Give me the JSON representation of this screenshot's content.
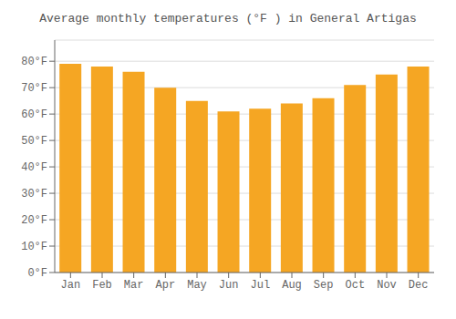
{
  "chart_data": {
    "type": "bar",
    "title": "Average monthly temperatures (°F ) in General Artigas",
    "categories": [
      "Jan",
      "Feb",
      "Mar",
      "Apr",
      "May",
      "Jun",
      "Jul",
      "Aug",
      "Sep",
      "Oct",
      "Nov",
      "Dec"
    ],
    "values": [
      79,
      78,
      76,
      70,
      65,
      61,
      62,
      64,
      66,
      71,
      75,
      78
    ],
    "color": "#F5A623",
    "ylim": [
      0,
      88
    ],
    "yticks": [
      {
        "value": 0,
        "label": "0°F"
      },
      {
        "value": 10,
        "label": "10°F"
      },
      {
        "value": 20,
        "label": "20°F"
      },
      {
        "value": 30,
        "label": "30°F"
      },
      {
        "value": 40,
        "label": "40°F"
      },
      {
        "value": 50,
        "label": "50°F"
      },
      {
        "value": 60,
        "label": "60°F"
      },
      {
        "value": 70,
        "label": "70°F"
      },
      {
        "value": 80,
        "label": "80°F"
      }
    ],
    "grid": true
  }
}
